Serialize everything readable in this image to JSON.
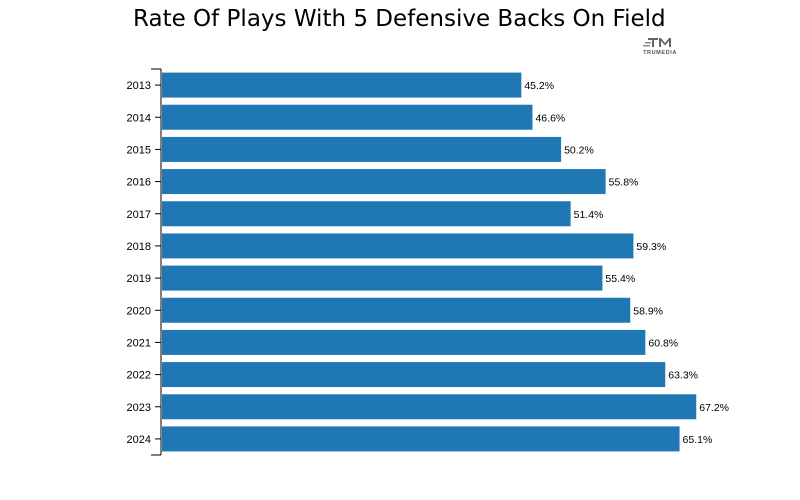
{
  "title": "Rate Of Plays With 5 Defensive Backs On Field",
  "logo": {
    "text": "TRUMEDIA"
  },
  "colors": {
    "bar": "#1f77b4"
  },
  "chart_data": {
    "type": "bar",
    "orientation": "horizontal",
    "title": "Rate Of Plays With 5 Defensive Backs On Field",
    "xlabel": "",
    "ylabel": "",
    "categories": [
      "2013",
      "2014",
      "2015",
      "2016",
      "2017",
      "2018",
      "2019",
      "2020",
      "2021",
      "2022",
      "2023",
      "2024"
    ],
    "values": [
      45.2,
      46.6,
      50.2,
      55.8,
      51.4,
      59.3,
      55.4,
      58.9,
      60.8,
      63.3,
      67.2,
      65.1
    ],
    "value_labels": [
      "45.2%",
      "46.6%",
      "50.2%",
      "55.8%",
      "51.4%",
      "59.3%",
      "55.4%",
      "58.9%",
      "60.8%",
      "63.3%",
      "67.2%",
      "65.1%"
    ],
    "xlim": [
      0,
      70
    ],
    "grid": false,
    "legend": "none"
  }
}
